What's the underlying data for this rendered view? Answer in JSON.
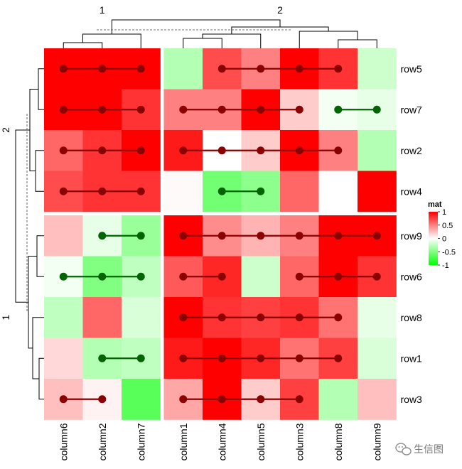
{
  "chart_data": {
    "type": "heatmap",
    "rows": [
      "row5",
      "row7",
      "row2",
      "row4",
      "row9",
      "row6",
      "row8",
      "row1",
      "row3"
    ],
    "columns": [
      "column6",
      "column2",
      "column7",
      "column1",
      "column4",
      "column5",
      "column3",
      "column8",
      "column9"
    ],
    "column_split_labels": [
      "1",
      "2"
    ],
    "row_split_labels": [
      "2",
      "1"
    ],
    "values": [
      [
        1.0,
        1.0,
        1.0,
        -0.3,
        0.7,
        0.5,
        1.0,
        0.8,
        -0.2
      ],
      [
        1.0,
        1.0,
        0.8,
        0.5,
        0.5,
        1.0,
        0.2,
        -0.05,
        -0.1
      ],
      [
        0.6,
        0.8,
        1.0,
        0.9,
        0.0,
        0.2,
        1.0,
        0.5,
        -0.3
      ],
      [
        0.7,
        0.8,
        0.8,
        0.02,
        -0.55,
        -0.45,
        0.6,
        0.0,
        1.0
      ],
      [
        0.25,
        -0.1,
        -0.4,
        1.0,
        0.45,
        0.3,
        0.5,
        1.0,
        1.0
      ],
      [
        -0.05,
        -0.5,
        -0.25,
        0.65,
        0.85,
        -0.2,
        0.6,
        1.0,
        0.8
      ],
      [
        -0.25,
        0.6,
        -0.15,
        1.0,
        0.8,
        0.75,
        0.8,
        0.55,
        -0.1
      ],
      [
        0.15,
        -0.3,
        -0.25,
        0.9,
        1.0,
        0.85,
        0.55,
        0.75,
        -0.15
      ],
      [
        0.25,
        0.05,
        -0.65,
        0.35,
        1.0,
        0.2,
        0.75,
        -0.3,
        0.25
      ]
    ],
    "lines": [
      {
        "row": "row5",
        "from": "column6",
        "to": "column7",
        "color": "darkred"
      },
      {
        "row": "row5",
        "from": "column4",
        "to": "column8",
        "color": "darkred"
      },
      {
        "row": "row7",
        "from": "column6",
        "to": "column7",
        "color": "darkred"
      },
      {
        "row": "row7",
        "from": "column1",
        "to": "column3",
        "color": "darkred"
      },
      {
        "row": "row7",
        "from": "column8",
        "to": "column9",
        "color": "darkgreen"
      },
      {
        "row": "row2",
        "from": "column6",
        "to": "column7",
        "color": "darkred"
      },
      {
        "row": "row2",
        "from": "column1",
        "to": "column8",
        "color": "darkred"
      },
      {
        "row": "row4",
        "from": "column6",
        "to": "column7",
        "color": "darkred"
      },
      {
        "row": "row4",
        "from": "column4",
        "to": "column5",
        "color": "darkgreen"
      },
      {
        "row": "row9",
        "from": "column2",
        "to": "column7",
        "color": "darkgreen"
      },
      {
        "row": "row9",
        "from": "column1",
        "to": "column9",
        "color": "darkred"
      },
      {
        "row": "row6",
        "from": "column6",
        "to": "column7",
        "color": "darkgreen"
      },
      {
        "row": "row6",
        "from": "column1",
        "to": "column4",
        "color": "darkred"
      },
      {
        "row": "row6",
        "from": "column3",
        "to": "column9",
        "color": "darkred"
      },
      {
        "row": "row8",
        "from": "column1",
        "to": "column8",
        "color": "darkred"
      },
      {
        "row": "row1",
        "from": "column2",
        "to": "column7",
        "color": "darkgreen"
      },
      {
        "row": "row1",
        "from": "column1",
        "to": "column8",
        "color": "darkred"
      },
      {
        "row": "row3",
        "from": "column6",
        "to": "column2",
        "color": "darkred"
      },
      {
        "row": "row3",
        "from": "column1",
        "to": "column3",
        "color": "darkred"
      }
    ],
    "legend": {
      "title": "mat",
      "ticks": [
        "1",
        "0.5",
        "0",
        "-0.5",
        "-1"
      ],
      "tick_values": [
        1,
        0.5,
        0,
        -0.5,
        -1
      ],
      "placement": "right"
    },
    "color_scale": {
      "low": "#00ff00",
      "mid": "#ffffff",
      "high": "#ff0000"
    },
    "line_colors": {
      "darkred": "#8b0000",
      "darkgreen": "#006400"
    },
    "row_splits": [
      4,
      5
    ],
    "column_splits": [
      3,
      6
    ]
  },
  "watermark": {
    "text": "生信图",
    "icon": "wechat-icon"
  }
}
